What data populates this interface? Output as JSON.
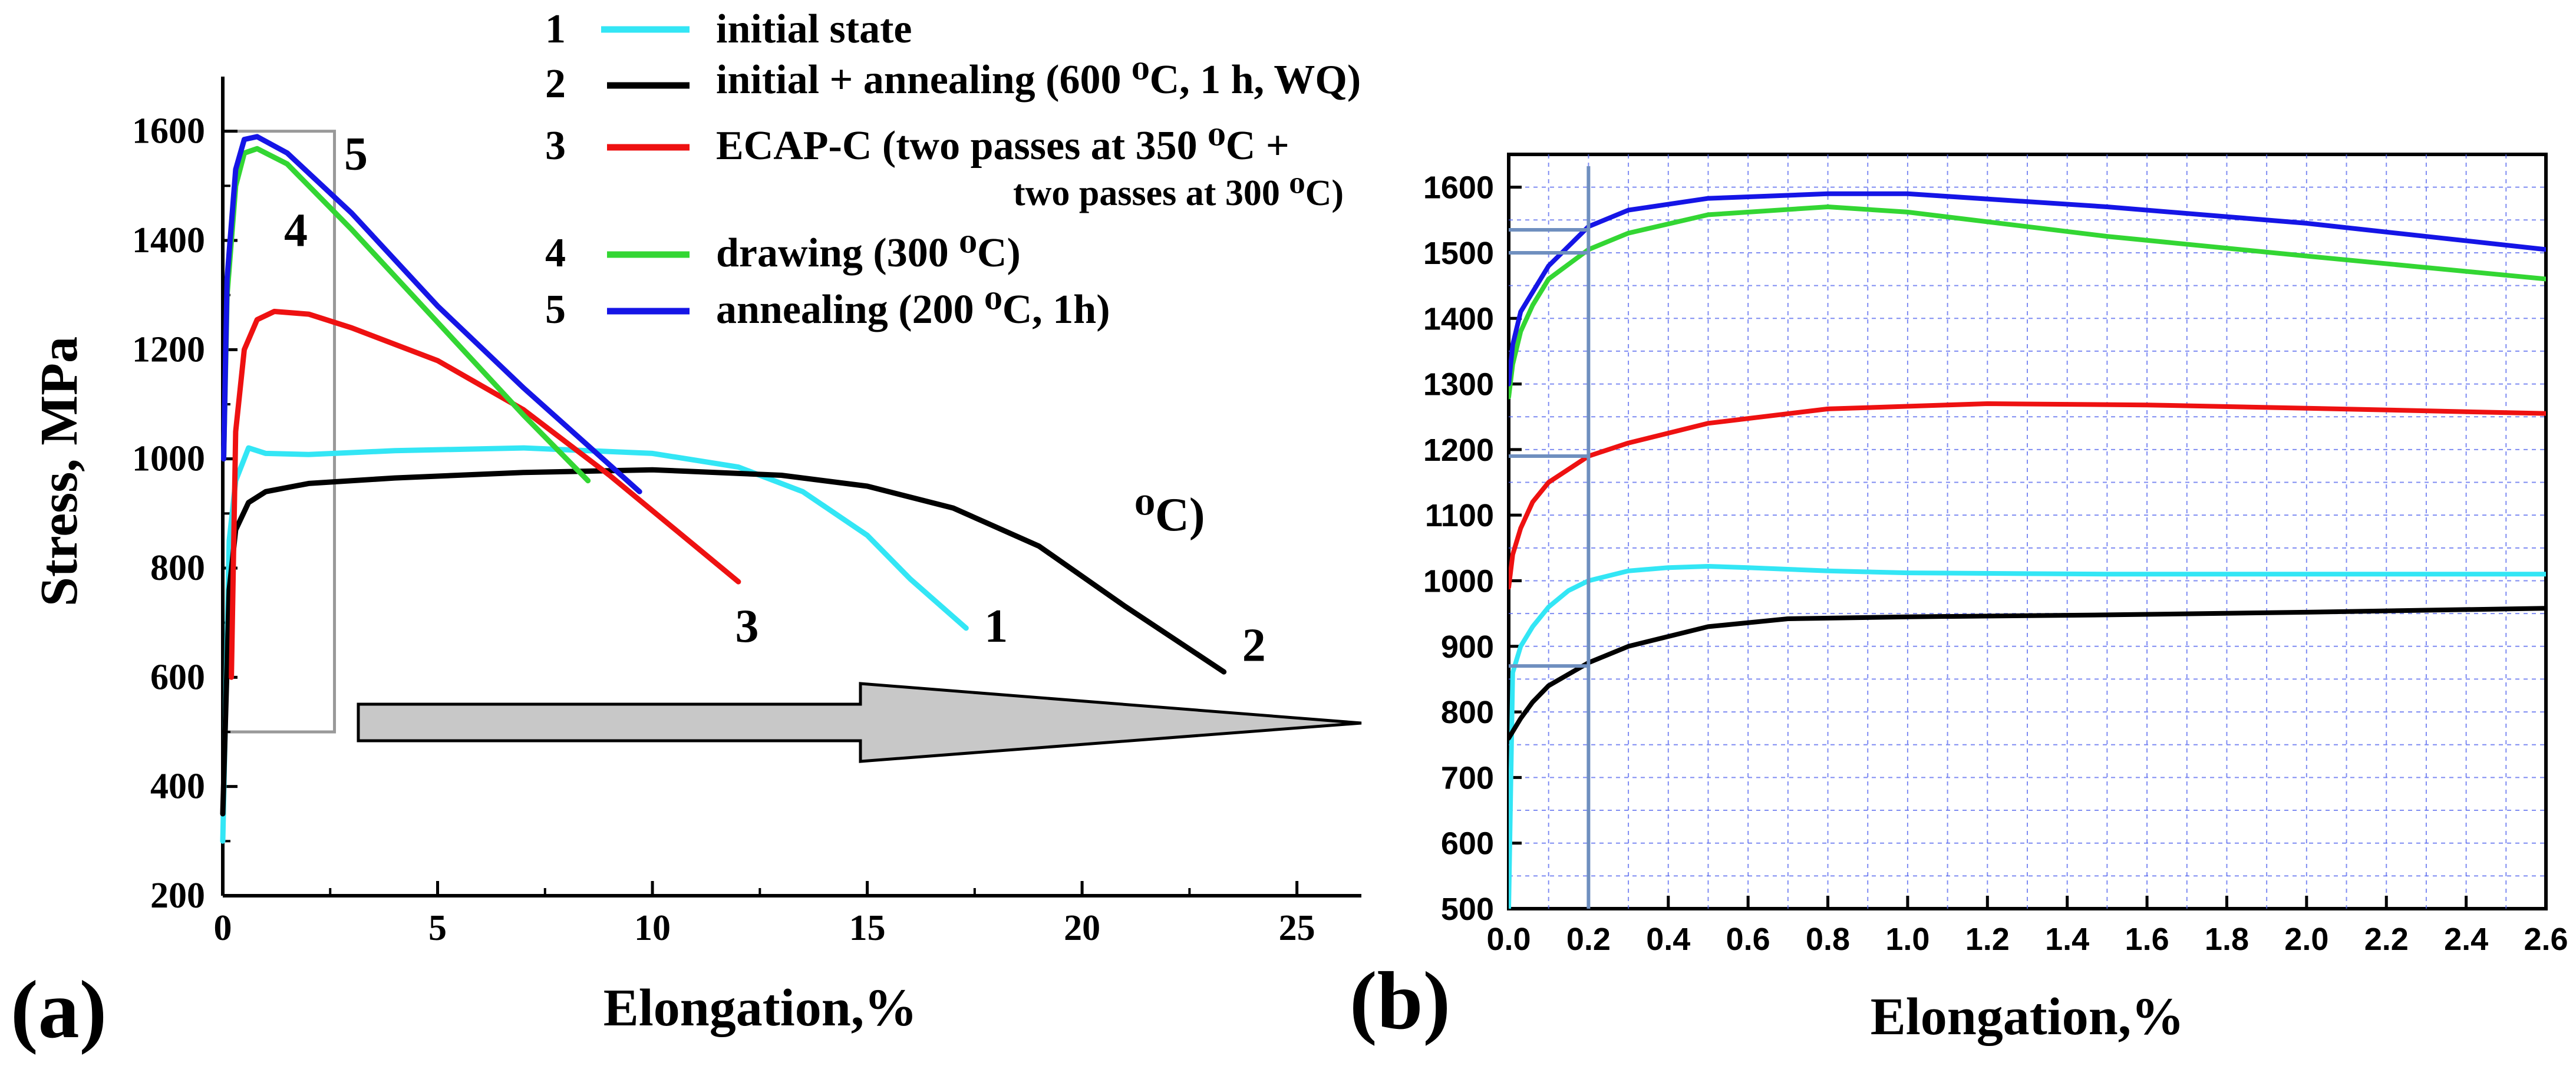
{
  "legend": [
    {
      "num": "1",
      "label": "initial state",
      "color": "#33e6f5"
    },
    {
      "num": "2",
      "label": "initial + annealing (600 ⁰C, 1 h, WQ)",
      "color": "#000000"
    },
    {
      "num": "3",
      "label": "ECAP-C (two passes at 350 ⁰C +",
      "label2": "two passes at 300 ⁰C)",
      "color": "#ee1111"
    },
    {
      "num": "4",
      "label": "drawing (300 ⁰C)",
      "color": "#33d633"
    },
    {
      "num": "5",
      "label": "annealing (200 ⁰C, 1h)",
      "color": "#1515e6"
    }
  ],
  "stray_text": "⁰C)",
  "chart_data": [
    {
      "type": "line",
      "panel_label": "(a)",
      "xlabel": "Elongation,%",
      "ylabel": "Stress, MPa",
      "xlim": [
        0,
        26.5
      ],
      "ylim": [
        200,
        1700
      ],
      "xticks": [
        "0",
        "5",
        "10",
        "15",
        "20",
        "25"
      ],
      "yticks": [
        "200",
        "400",
        "600",
        "800",
        "1000",
        "1200",
        "1400",
        "1600"
      ],
      "zoom_box": {
        "x": [
          0,
          2.6
        ],
        "y": [
          500,
          1600
        ]
      },
      "curve_labels": [
        {
          "text": "5",
          "x": 3.1,
          "y": 1530
        },
        {
          "text": "4",
          "x": 1.7,
          "y": 1390
        },
        {
          "text": "3",
          "x": 12.2,
          "y": 665
        },
        {
          "text": "1",
          "x": 18.0,
          "y": 665
        },
        {
          "text": "2",
          "x": 24.0,
          "y": 630
        }
      ],
      "series": [
        {
          "name": "1",
          "color": "#33e6f5",
          "x": [
            0,
            0.15,
            0.3,
            0.6,
            1,
            2,
            4,
            7,
            10,
            12,
            13.5,
            15,
            16,
            17.3
          ],
          "y": [
            300,
            850,
            960,
            1020,
            1010,
            1008,
            1015,
            1020,
            1010,
            985,
            940,
            860,
            780,
            690
          ]
        },
        {
          "name": "2",
          "color": "#000000",
          "x": [
            0,
            0.15,
            0.3,
            0.6,
            1,
            2,
            4,
            7,
            10,
            13,
            15,
            17,
            19,
            21,
            23.3
          ],
          "y": [
            350,
            760,
            870,
            920,
            940,
            955,
            965,
            975,
            980,
            970,
            950,
            910,
            840,
            730,
            610
          ]
        },
        {
          "name": "3",
          "color": "#ee1111",
          "x": [
            0.2,
            0.3,
            0.5,
            0.8,
            1.2,
            2,
            3,
            5,
            7,
            9,
            11,
            12
          ],
          "y": [
            600,
            1050,
            1200,
            1255,
            1270,
            1265,
            1240,
            1180,
            1090,
            970,
            840,
            775
          ]
        },
        {
          "name": "4",
          "color": "#33d633",
          "x": [
            0.02,
            0.1,
            0.3,
            0.5,
            0.8,
            1.5,
            3,
            5,
            7,
            8.5
          ],
          "y": [
            1000,
            1300,
            1500,
            1560,
            1568,
            1540,
            1420,
            1250,
            1080,
            960
          ]
        },
        {
          "name": "5",
          "color": "#1515e6",
          "x": [
            0.02,
            0.1,
            0.3,
            0.5,
            0.8,
            1.5,
            3,
            5,
            7,
            9.7
          ],
          "y": [
            1000,
            1330,
            1530,
            1585,
            1590,
            1560,
            1450,
            1280,
            1130,
            940
          ]
        }
      ]
    },
    {
      "type": "line",
      "panel_label": "(b)",
      "xlabel": "Elongation,%",
      "xlim": [
        0,
        2.6
      ],
      "ylim": [
        500,
        1650
      ],
      "xticks": [
        "0.0",
        "0.2",
        "0.4",
        "0.6",
        "0.8",
        "1.0",
        "1.2",
        "1.4",
        "1.6",
        "1.8",
        "2.0",
        "2.2",
        "2.4",
        "2.6"
      ],
      "yticks": [
        "500",
        "600",
        "700",
        "800",
        "900",
        "1000",
        "1100",
        "1200",
        "1300",
        "1400",
        "1500",
        "1600"
      ],
      "grid": true,
      "proof_strain": 0.2,
      "yield_levels": [
        870,
        1190,
        1500,
        1535
      ],
      "series": [
        {
          "name": "1",
          "color": "#33e6f5",
          "x": [
            0,
            0.01,
            0.03,
            0.06,
            0.1,
            0.15,
            0.2,
            0.3,
            0.4,
            0.5,
            0.6,
            0.8,
            1.0,
            1.5,
            2.0,
            2.6
          ],
          "y": [
            500,
            860,
            900,
            930,
            960,
            985,
            1000,
            1015,
            1020,
            1022,
            1020,
            1015,
            1012,
            1010,
            1010,
            1010
          ]
        },
        {
          "name": "2",
          "color": "#000000",
          "x": [
            0,
            0.03,
            0.06,
            0.1,
            0.2,
            0.3,
            0.5,
            0.7,
            1.0,
            1.5,
            2.0,
            2.6
          ],
          "y": [
            760,
            790,
            815,
            840,
            875,
            900,
            930,
            942,
            945,
            948,
            952,
            958
          ]
        },
        {
          "name": "3",
          "color": "#ee1111",
          "x": [
            0,
            0.01,
            0.03,
            0.06,
            0.1,
            0.2,
            0.3,
            0.5,
            0.8,
            1.2,
            1.6,
            2.0,
            2.6
          ],
          "y": [
            990,
            1040,
            1080,
            1120,
            1150,
            1190,
            1210,
            1240,
            1262,
            1270,
            1268,
            1263,
            1255
          ]
        },
        {
          "name": "4",
          "color": "#33d633",
          "x": [
            0,
            0.01,
            0.03,
            0.06,
            0.1,
            0.2,
            0.3,
            0.5,
            0.8,
            1.0,
            1.5,
            2.0,
            2.6
          ],
          "y": [
            1280,
            1330,
            1380,
            1420,
            1460,
            1505,
            1530,
            1558,
            1570,
            1562,
            1525,
            1495,
            1460
          ]
        },
        {
          "name": "5",
          "color": "#1515e6",
          "x": [
            0,
            0.01,
            0.03,
            0.06,
            0.1,
            0.2,
            0.3,
            0.5,
            0.8,
            1.0,
            1.5,
            2.0,
            2.6
          ],
          "y": [
            1300,
            1360,
            1410,
            1440,
            1480,
            1540,
            1565,
            1583,
            1590,
            1590,
            1570,
            1545,
            1505
          ]
        }
      ]
    }
  ]
}
